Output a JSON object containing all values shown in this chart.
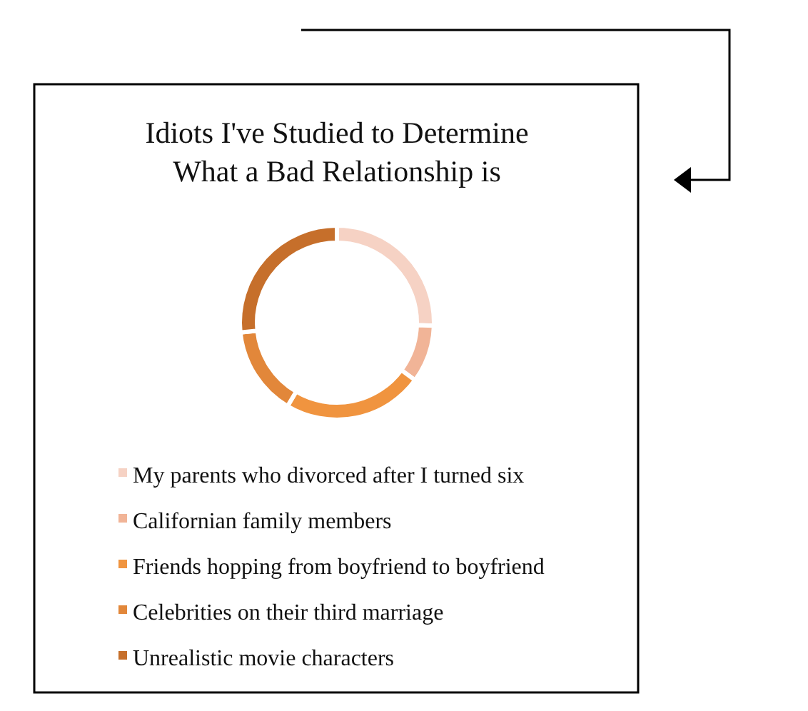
{
  "chart_data": {
    "type": "donut",
    "title": "Idiots I've Studied to Determine What a Bad Relationship is",
    "categories": [
      "My parents who divorced after I turned six",
      "Californian family members",
      "Friends hopping from boyfriend to boyfriend",
      "Celebrities on their third marriage",
      "Unrealistic movie characters"
    ],
    "values": [
      25.5,
      9.6,
      23.4,
      14.9,
      26.6
    ],
    "colors": [
      "#f6d2c4",
      "#f1b497",
      "#f0943f",
      "#e2873a",
      "#c66f2b"
    ],
    "legend": "bottom"
  }
}
